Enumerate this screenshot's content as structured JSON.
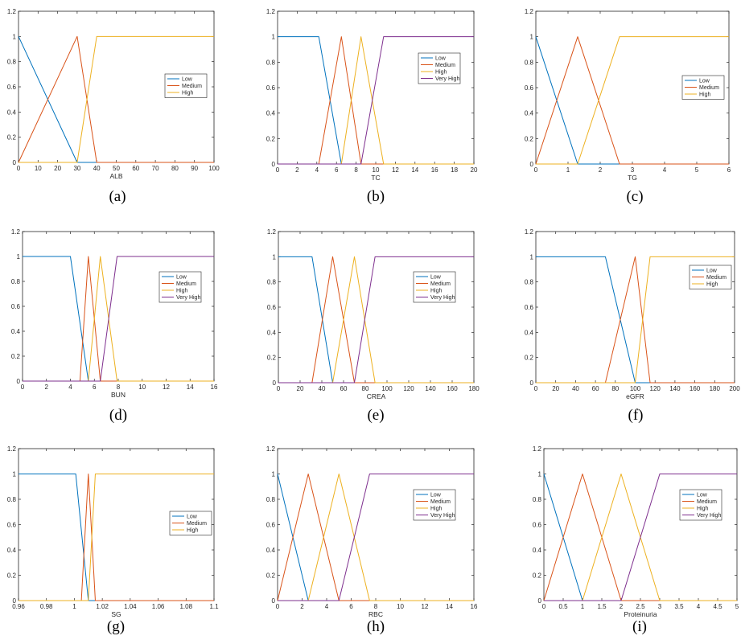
{
  "colors": {
    "Low": "#0072BD",
    "Medium": "#D95319",
    "High": "#EDB120",
    "Very High": "#7E2F8E"
  },
  "chart_data": [
    {
      "type": "line",
      "caption": "(a)",
      "xlabel": "ALB",
      "ylabel": "",
      "xlim": [
        0,
        100
      ],
      "ylim": [
        0,
        1.2
      ],
      "xticks": [
        0,
        10,
        20,
        30,
        40,
        50,
        60,
        70,
        80,
        90,
        100
      ],
      "xtick_labels": [
        "0",
        "10",
        "20",
        "30",
        "40",
        "50",
        "60",
        "70",
        "80",
        "90",
        "100"
      ],
      "yticks": [
        0,
        0.2,
        0.4,
        0.6,
        0.8,
        1,
        1.2
      ],
      "ytick_labels": [
        "0",
        "0.2",
        "0.4",
        "0.6",
        "0.8",
        "1",
        "1.2"
      ],
      "legend_position": "center-right",
      "series": [
        {
          "name": "Low",
          "x": [
            0,
            30,
            100
          ],
          "y": [
            1,
            0,
            0
          ]
        },
        {
          "name": "Medium",
          "x": [
            0,
            30,
            40,
            100
          ],
          "y": [
            0,
            1,
            0,
            0
          ]
        },
        {
          "name": "High",
          "x": [
            0,
            30,
            40,
            100
          ],
          "y": [
            0,
            0,
            1,
            1
          ]
        }
      ]
    },
    {
      "type": "line",
      "caption": "(b)",
      "xlabel": "TC",
      "ylabel": "",
      "xlim": [
        0,
        20
      ],
      "ylim": [
        0,
        1.2
      ],
      "xticks": [
        0,
        2,
        4,
        6,
        8,
        10,
        12,
        14,
        16,
        18,
        20
      ],
      "xtick_labels": [
        "0",
        "2",
        "4",
        "6",
        "8",
        "10",
        "12",
        "14",
        "16",
        "18",
        "20"
      ],
      "yticks": [
        0,
        0.2,
        0.4,
        0.6,
        0.8,
        1,
        1.2
      ],
      "ytick_labels": [
        "0",
        "0.2",
        "0.4",
        "0.6",
        "0.8",
        "1",
        "1.2"
      ],
      "legend_position": "center-right",
      "series": [
        {
          "name": "Low",
          "x": [
            0,
            4.2,
            6.5,
            20
          ],
          "y": [
            1,
            1,
            0,
            0
          ]
        },
        {
          "name": "Medium",
          "x": [
            0,
            4.2,
            6.5,
            8.5,
            20
          ],
          "y": [
            0,
            0,
            1,
            0,
            0
          ]
        },
        {
          "name": "High",
          "x": [
            0,
            6.5,
            8.5,
            10.8,
            20
          ],
          "y": [
            0,
            0,
            1,
            0,
            0
          ]
        },
        {
          "name": "Very High",
          "x": [
            0,
            8.5,
            10.8,
            20
          ],
          "y": [
            0,
            0,
            1,
            1
          ]
        }
      ]
    },
    {
      "type": "line",
      "caption": "(c)",
      "xlabel": "TG",
      "ylabel": "",
      "xlim": [
        0,
        6
      ],
      "ylim": [
        0,
        1.2
      ],
      "xticks": [
        0,
        1,
        2,
        3,
        4,
        5,
        6
      ],
      "xtick_labels": [
        "0",
        "1",
        "2",
        "3",
        "4",
        "5",
        "6"
      ],
      "yticks": [
        0,
        0.2,
        0.4,
        0.6,
        0.8,
        1,
        1.2
      ],
      "ytick_labels": [
        "0",
        "0.2",
        "0.4",
        "0.6",
        "0.8",
        "1",
        "1.2"
      ],
      "legend_position": "center-right",
      "series": [
        {
          "name": "Low",
          "x": [
            0,
            1.3,
            6
          ],
          "y": [
            1,
            0,
            0
          ]
        },
        {
          "name": "Medium",
          "x": [
            0,
            1.3,
            2.6,
            6
          ],
          "y": [
            0,
            1,
            0,
            0
          ]
        },
        {
          "name": "High",
          "x": [
            0,
            1.3,
            2.6,
            6
          ],
          "y": [
            0,
            0,
            1,
            1
          ]
        }
      ]
    },
    {
      "type": "line",
      "caption": "(d)",
      "xlabel": "BUN",
      "ylabel": "",
      "xlim": [
        0,
        16
      ],
      "ylim": [
        0,
        1.2
      ],
      "xticks": [
        0,
        2,
        4,
        6,
        8,
        10,
        12,
        14,
        16
      ],
      "xtick_labels": [
        "0",
        "2",
        "4",
        "6",
        "8",
        "10",
        "12",
        "14",
        "16"
      ],
      "yticks": [
        0,
        0.2,
        0.4,
        0.6,
        0.8,
        1,
        1.2
      ],
      "ytick_labels": [
        "0",
        "0.2",
        "0.4",
        "0.6",
        "0.8",
        "1",
        "1.2"
      ],
      "legend_position": "center-right",
      "series": [
        {
          "name": "Low",
          "x": [
            0,
            4,
            5.5,
            16
          ],
          "y": [
            1,
            1,
            0,
            0
          ]
        },
        {
          "name": "Medium",
          "x": [
            0,
            4.8,
            5.5,
            6.5,
            16
          ],
          "y": [
            0,
            0,
            1,
            0,
            0
          ]
        },
        {
          "name": "High",
          "x": [
            0,
            5.5,
            6.5,
            7.9,
            16
          ],
          "y": [
            0,
            0,
            1,
            0,
            0
          ]
        },
        {
          "name": "Very High",
          "x": [
            0,
            6.5,
            7.9,
            16
          ],
          "y": [
            0,
            0,
            1,
            1
          ]
        }
      ]
    },
    {
      "type": "line",
      "caption": "(e)",
      "xlabel": "CREA",
      "ylabel": "",
      "xlim": [
        0,
        180
      ],
      "ylim": [
        0,
        1.2
      ],
      "xticks": [
        0,
        20,
        40,
        60,
        80,
        100,
        120,
        140,
        160,
        180
      ],
      "xtick_labels": [
        "0",
        "20",
        "40",
        "60",
        "80",
        "100",
        "120",
        "140",
        "160",
        "180"
      ],
      "yticks": [
        0,
        0.2,
        0.4,
        0.6,
        0.8,
        1,
        1.2
      ],
      "ytick_labels": [
        "0",
        "0.2",
        "0.4",
        "0.6",
        "0.8",
        "1",
        "1.2"
      ],
      "legend_position": "center-right",
      "series": [
        {
          "name": "Low",
          "x": [
            0,
            31,
            50,
            180
          ],
          "y": [
            1,
            1,
            0,
            0
          ]
        },
        {
          "name": "Medium",
          "x": [
            0,
            31,
            50,
            70,
            180
          ],
          "y": [
            0,
            0,
            1,
            0,
            0
          ]
        },
        {
          "name": "High",
          "x": [
            0,
            50,
            70,
            89,
            180
          ],
          "y": [
            0,
            0,
            1,
            0,
            0
          ]
        },
        {
          "name": "Very High",
          "x": [
            0,
            70,
            89,
            180
          ],
          "y": [
            0,
            0,
            1,
            1
          ]
        }
      ]
    },
    {
      "type": "line",
      "caption": "(f)",
      "xlabel": "eGFR",
      "ylabel": "",
      "xlim": [
        0,
        200
      ],
      "ylim": [
        0,
        1.2
      ],
      "xticks": [
        0,
        20,
        40,
        60,
        80,
        100,
        120,
        140,
        160,
        180,
        200
      ],
      "xtick_labels": [
        "0",
        "20",
        "40",
        "60",
        "80",
        "100",
        "120",
        "140",
        "160",
        "180",
        "200"
      ],
      "yticks": [
        0,
        0.2,
        0.4,
        0.6,
        0.8,
        1,
        1.2
      ],
      "ytick_labels": [
        "0",
        "0.2",
        "0.4",
        "0.6",
        "0.8",
        "1",
        "1.2"
      ],
      "legend_position": "top-right",
      "series": [
        {
          "name": "Low",
          "x": [
            0,
            70,
            100,
            200
          ],
          "y": [
            1,
            1,
            0,
            0
          ]
        },
        {
          "name": "Medium",
          "x": [
            0,
            70,
            100,
            115,
            200
          ],
          "y": [
            0,
            0,
            1,
            0,
            0
          ]
        },
        {
          "name": "High",
          "x": [
            0,
            100,
            115,
            200
          ],
          "y": [
            0,
            0,
            1,
            1
          ]
        }
      ]
    },
    {
      "type": "line",
      "caption": "(g)",
      "xlabel": "SG",
      "ylabel": "",
      "xlim": [
        0.96,
        1.1
      ],
      "ylim": [
        0,
        1.2
      ],
      "xticks": [
        0.96,
        0.98,
        1,
        1.02,
        1.04,
        1.06,
        1.08,
        1.1
      ],
      "xtick_labels": [
        "0.96",
        "0.98",
        "1",
        "1.02",
        "1.04",
        "1.06",
        "1.08",
        "1.1"
      ],
      "yticks": [
        0,
        0.2,
        0.4,
        0.6,
        0.8,
        1,
        1.2
      ],
      "ytick_labels": [
        "0",
        "0.2",
        "0.4",
        "0.6",
        "0.8",
        "1",
        "1.2"
      ],
      "legend_position": "center-right",
      "series": [
        {
          "name": "Low",
          "x": [
            0.96,
            1.001,
            1.01,
            1.1
          ],
          "y": [
            1,
            1,
            0,
            0
          ]
        },
        {
          "name": "Medium",
          "x": [
            0.96,
            1.005,
            1.01,
            1.015,
            1.1
          ],
          "y": [
            0,
            0,
            1,
            0,
            0
          ]
        },
        {
          "name": "High",
          "x": [
            0.96,
            1.01,
            1.015,
            1.1
          ],
          "y": [
            0,
            0,
            1,
            1
          ]
        }
      ]
    },
    {
      "type": "line",
      "caption": "(h)",
      "xlabel": "RBC",
      "ylabel": "",
      "xlim": [
        0,
        16
      ],
      "ylim": [
        0,
        1.2
      ],
      "xticks": [
        0,
        2,
        4,
        6,
        8,
        10,
        12,
        14,
        16
      ],
      "xtick_labels": [
        "0",
        "2",
        "4",
        "6",
        "8",
        "10",
        "12",
        "14",
        "16"
      ],
      "yticks": [
        0,
        0.2,
        0.4,
        0.6,
        0.8,
        1,
        1.2
      ],
      "ytick_labels": [
        "0",
        "0.2",
        "0.4",
        "0.6",
        "0.8",
        "1",
        "1.2"
      ],
      "legend_position": "center-right",
      "series": [
        {
          "name": "Low",
          "x": [
            0,
            2.5,
            16
          ],
          "y": [
            1,
            0,
            0
          ]
        },
        {
          "name": "Medium",
          "x": [
            0,
            2.5,
            5,
            16
          ],
          "y": [
            0,
            1,
            0,
            0
          ]
        },
        {
          "name": "High",
          "x": [
            0,
            2.5,
            5,
            7.5,
            16
          ],
          "y": [
            0,
            0,
            1,
            0,
            0
          ]
        },
        {
          "name": "Very High",
          "x": [
            0,
            5,
            7.5,
            16
          ],
          "y": [
            0,
            0,
            1,
            1
          ]
        }
      ]
    },
    {
      "type": "line",
      "caption": "(i)",
      "xlabel": "Proteinuria",
      "ylabel": "",
      "xlim": [
        0,
        5
      ],
      "ylim": [
        0,
        1.2
      ],
      "xticks": [
        0,
        0.5,
        1,
        1.5,
        2,
        2.5,
        3,
        3.5,
        4,
        4.5,
        5
      ],
      "xtick_labels": [
        "0",
        "0.5",
        "1",
        "1.5",
        "2",
        "2.5",
        "3",
        "3.5",
        "4",
        "4.5",
        "5"
      ],
      "yticks": [
        0,
        0.2,
        0.4,
        0.6,
        0.8,
        1,
        1.2
      ],
      "ytick_labels": [
        "0",
        "0.2",
        "0.4",
        "0.6",
        "0.8",
        "1",
        "1.2"
      ],
      "legend_position": "center-right",
      "series": [
        {
          "name": "Low",
          "x": [
            0,
            1,
            5
          ],
          "y": [
            1,
            0,
            0
          ]
        },
        {
          "name": "Medium",
          "x": [
            0,
            1,
            2,
            5
          ],
          "y": [
            0,
            1,
            0,
            0
          ]
        },
        {
          "name": "High",
          "x": [
            0,
            1,
            2,
            3,
            5
          ],
          "y": [
            0,
            0,
            1,
            0,
            0
          ]
        },
        {
          "name": "Very High",
          "x": [
            0,
            2,
            3,
            5
          ],
          "y": [
            0,
            0,
            1,
            1
          ]
        }
      ]
    }
  ]
}
